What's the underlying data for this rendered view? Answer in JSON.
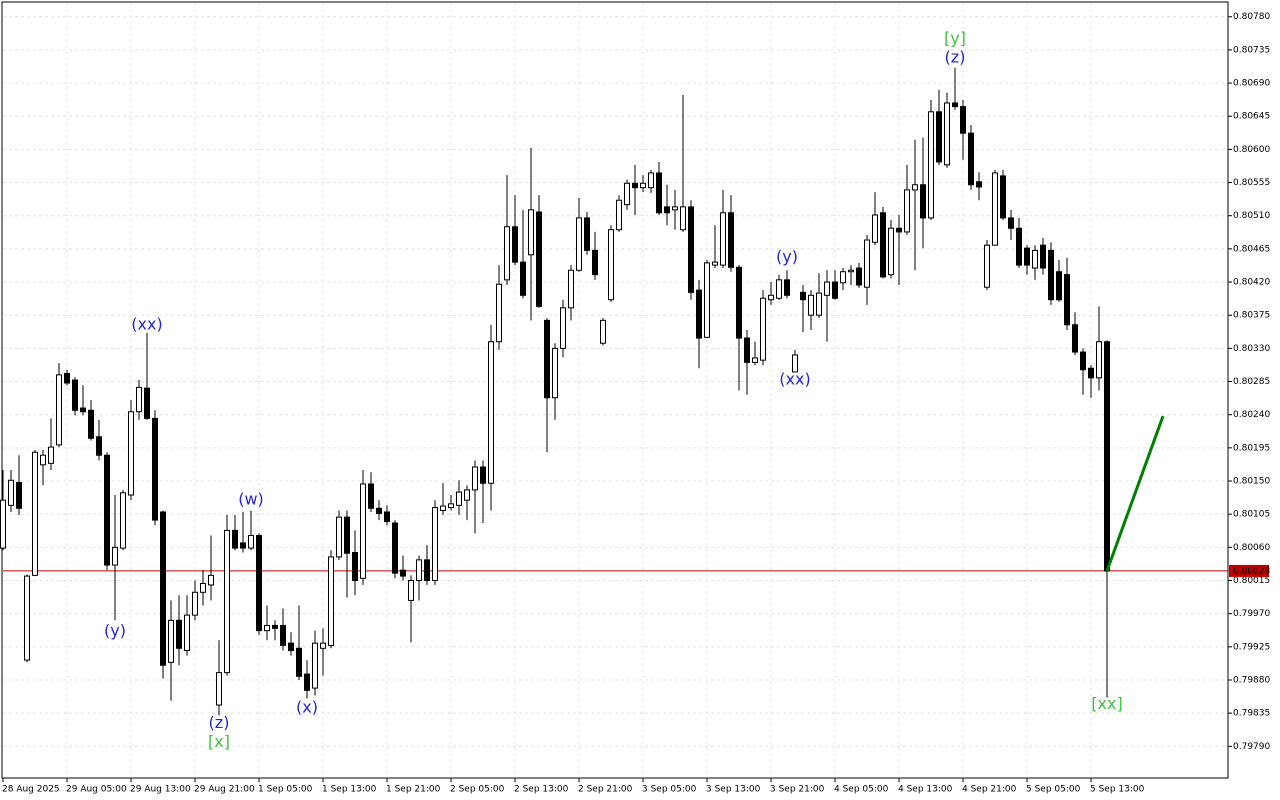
{
  "chart_data": {
    "type": "candlestick",
    "categories": [
      "28 Aug 2025",
      null,
      null,
      null,
      null,
      null,
      null,
      null,
      "29 Aug 05:00",
      null,
      null,
      null,
      null,
      null,
      null,
      null,
      "29 Aug 13:00",
      null,
      null,
      null,
      null,
      null,
      null,
      null,
      "29 Aug 21:00",
      null,
      null,
      null,
      null,
      null,
      null,
      null,
      "1 Sep 05:00",
      null,
      null,
      null,
      null,
      null,
      null,
      null,
      "1 Sep 13:00",
      null,
      null,
      null,
      null,
      null,
      null,
      null,
      "1 Sep 21:00",
      null,
      null,
      null,
      null,
      null,
      null,
      null,
      "2 Sep 05:00",
      null,
      null,
      null,
      null,
      null,
      null,
      null,
      "2 Sep 13:00",
      null,
      null,
      null,
      null,
      null,
      null,
      null,
      "2 Sep 21:00",
      null,
      null,
      null,
      null,
      null,
      null,
      null,
      "3 Sep 05:00",
      null,
      null,
      null,
      null,
      null,
      null,
      null,
      "3 Sep 13:00",
      null,
      null,
      null,
      null,
      null,
      null,
      null,
      "3 Sep 21:00",
      null,
      null,
      null,
      null,
      null,
      null,
      null,
      "4 Sep 05:00",
      null,
      null,
      null,
      null,
      null,
      null,
      null,
      "4 Sep 13:00",
      null,
      null,
      null,
      null,
      null,
      null,
      null,
      "4 Sep 21:00",
      null,
      null,
      null,
      null,
      null,
      null,
      null,
      "5 Sep 05:00",
      null,
      null,
      null,
      null,
      null,
      null,
      null,
      "5 Sep 13:00",
      null,
      null
    ],
    "open": [
      0.80059,
      0.80117,
      0.80148,
      0.79907,
      0.80022,
      0.80172,
      0.80174,
      0.80199,
      0.80296,
      0.80287,
      0.80249,
      0.80246,
      0.8021,
      0.80185,
      0.80036,
      0.80059,
      0.80131,
      0.80244,
      0.80276,
      0.80235,
      0.80108,
      0.79904,
      0.79961,
      0.7992,
      0.79968,
      0.79999,
      0.80009,
      0.79846,
      0.7989,
      0.80083,
      0.80066,
      0.80059,
      0.80076,
      0.79947,
      0.79954,
      0.79954,
      0.7993,
      0.79923,
      0.79888,
      0.79869,
      0.79923,
      0.79927,
      0.80047,
      0.80101,
      0.80053,
      0.80018,
      0.80146,
      0.80113,
      0.80108,
      0.80093,
      0.80029,
      0.79988,
      0.80015,
      0.80043,
      0.80015,
      0.8011,
      0.80114,
      0.80117,
      0.80124,
      0.80138,
      0.80169,
      0.80147,
      0.80339,
      0.80423,
      0.80495,
      0.80447,
      0.80457,
      0.80515,
      0.80368,
      0.80263,
      0.8033,
      0.80385,
      0.80436,
      0.80507,
      0.80463,
      0.80337,
      0.80396,
      0.80491,
      0.80525,
      0.80554,
      0.80548,
      0.80548,
      0.80568,
      0.80522,
      0.80518,
      0.80491,
      0.80522,
      0.80409,
      0.80345,
      0.80443,
      0.80443,
      0.80514,
      0.8044,
      0.80344,
      0.80311,
      0.80314,
      0.80396,
      0.80398,
      0.80423,
      0.80298,
      0.80406,
      0.80375,
      0.80375,
      0.80402,
      0.8042,
      0.80419,
      0.80434,
      0.80439,
      0.80413,
      0.80474,
      0.80514,
      0.8043,
      0.80493,
      0.80488,
      0.80545,
      0.80552,
      0.80507,
      0.80651,
      0.80579,
      0.80663,
      0.80658,
      0.80622,
      0.80556,
      0.80413,
      0.8047,
      0.80564,
      0.80507,
      0.80493,
      0.80466,
      0.80439,
      0.8047,
      0.80463,
      0.80434,
      0.8043,
      0.80362,
      0.80325,
      0.80303,
      0.8029,
      0.80339
    ],
    "high": [
      0.80165,
      0.80165,
      0.80185,
      0.80023,
      0.80192,
      0.80192,
      0.80235,
      0.8031,
      0.80301,
      0.80291,
      0.8028,
      0.8026,
      0.80233,
      0.80189,
      0.80131,
      0.80138,
      0.8026,
      0.80287,
      0.80351,
      0.80246,
      0.8011,
      0.79988,
      0.79995,
      0.79995,
      0.80015,
      0.80029,
      0.80076,
      0.79934,
      0.80104,
      0.80104,
      0.80108,
      0.8011,
      0.80079,
      0.79981,
      0.79961,
      0.79977,
      0.79945,
      0.79981,
      0.79907,
      0.79947,
      0.7995,
      0.80056,
      0.8011,
      0.8011,
      0.80083,
      0.80165,
      0.80162,
      0.80124,
      0.80117,
      0.80097,
      0.80049,
      0.80022,
      0.80049,
      0.80063,
      0.80124,
      0.80147,
      0.80131,
      0.80151,
      0.80144,
      0.80178,
      0.80178,
      0.80362,
      0.80443,
      0.80565,
      0.80538,
      0.80518,
      0.80602,
      0.80538,
      0.80371,
      0.80337,
      0.80396,
      0.80443,
      0.80534,
      0.80515,
      0.80488,
      0.80371,
      0.80497,
      0.80538,
      0.80559,
      0.80579,
      0.80565,
      0.80572,
      0.80583,
      0.80552,
      0.80545,
      0.80674,
      0.80531,
      0.80423,
      0.8045,
      0.80497,
      0.80545,
      0.80538,
      0.80443,
      0.80355,
      0.80339,
      0.80409,
      0.8042,
      0.8043,
      0.80436,
      0.80328,
      0.80416,
      0.80409,
      0.80432,
      0.80436,
      0.80436,
      0.80439,
      0.80443,
      0.80446,
      0.80484,
      0.80542,
      0.80522,
      0.80504,
      0.80511,
      0.80579,
      0.80613,
      0.80616,
      0.80667,
      0.80681,
      0.80677,
      0.80711,
      0.80667,
      0.80633,
      0.80569,
      0.80477,
      0.80572,
      0.80572,
      0.80518,
      0.80507,
      0.8047,
      0.8047,
      0.8048,
      0.80474,
      0.8045,
      0.80453,
      0.80379,
      0.8033,
      0.80307,
      0.80387,
      0.80341
    ],
    "low": [
      0.80056,
      0.80108,
      0.80104,
      0.79904,
      0.80021,
      0.80144,
      0.80165,
      0.80196,
      0.8028,
      0.80239,
      0.80239,
      0.80205,
      0.80178,
      0.80029,
      0.79961,
      0.80056,
      0.80124,
      0.80233,
      0.80233,
      0.8009,
      0.79882,
      0.79852,
      0.799,
      0.79913,
      0.79961,
      0.79981,
      0.79988,
      0.79832,
      0.79886,
      0.80056,
      0.80053,
      0.80056,
      0.79941,
      0.79934,
      0.79934,
      0.7992,
      0.79913,
      0.7988,
      0.79855,
      0.79859,
      0.79886,
      0.79923,
      0.80043,
      0.79992,
      0.79995,
      0.80009,
      0.80108,
      0.80097,
      0.8009,
      0.80018,
      0.80015,
      0.79931,
      0.79988,
      0.80009,
      0.80009,
      0.80104,
      0.8011,
      0.80104,
      0.80097,
      0.80079,
      0.80093,
      0.8011,
      0.80328,
      0.80416,
      0.80443,
      0.80398,
      0.80368,
      0.80385,
      0.80189,
      0.80233,
      0.80318,
      0.80368,
      0.80434,
      0.80457,
      0.80423,
      0.80334,
      0.80393,
      0.80488,
      0.80518,
      0.80511,
      0.80542,
      0.80541,
      0.80511,
      0.80497,
      0.80491,
      0.80488,
      0.80396,
      0.80303,
      0.80344,
      0.80439,
      0.80439,
      0.80434,
      0.80273,
      0.80267,
      0.80307,
      0.80307,
      0.80389,
      0.80396,
      0.80398,
      0.80298,
      0.80352,
      0.80355,
      0.80371,
      0.80339,
      0.80396,
      0.80409,
      0.80416,
      0.80412,
      0.80389,
      0.8047,
      0.80425,
      0.80425,
      0.80416,
      0.80484,
      0.80436,
      0.80466,
      0.80504,
      0.80579,
      0.80575,
      0.80654,
      0.80586,
      0.80545,
      0.80531,
      0.80409,
      0.8047,
      0.80504,
      0.80477,
      0.80439,
      0.8043,
      0.80423,
      0.8043,
      0.80389,
      0.80393,
      0.80355,
      0.80321,
      0.80267,
      0.80263,
      0.80273,
      0.79856
    ],
    "close": [
      0.80124,
      0.80151,
      0.80113,
      0.80021,
      0.80189,
      0.80185,
      0.80196,
      0.80294,
      0.80283,
      0.80246,
      0.80244,
      0.80208,
      0.80185,
      0.80036,
      0.8006,
      0.80134,
      0.80244,
      0.80277,
      0.80235,
      0.80097,
      0.799,
      0.79961,
      0.79923,
      0.79968,
      0.79999,
      0.80011,
      0.80022,
      0.7989,
      0.80083,
      0.80059,
      0.80059,
      0.80076,
      0.79947,
      0.79954,
      0.7995,
      0.79927,
      0.7992,
      0.79885,
      0.79866,
      0.7993,
      0.7993,
      0.80047,
      0.80101,
      0.80052,
      0.80015,
      0.80146,
      0.80113,
      0.80106,
      0.80095,
      0.80025,
      0.80021,
      0.80015,
      0.80043,
      0.80015,
      0.80114,
      0.80116,
      0.80119,
      0.80135,
      0.80138,
      0.80169,
      0.80147,
      0.80339,
      0.80417,
      0.80495,
      0.80447,
      0.80402,
      0.80518,
      0.80387,
      0.80263,
      0.8033,
      0.80385,
      0.80436,
      0.80507,
      0.80463,
      0.8043,
      0.80368,
      0.80491,
      0.80531,
      0.80554,
      0.80548,
      0.80554,
      0.80568,
      0.80514,
      0.80514,
      0.80522,
      0.80522,
      0.80406,
      0.80344,
      0.80446,
      0.80447,
      0.80514,
      0.8044,
      0.80344,
      0.80311,
      0.80317,
      0.80398,
      0.80402,
      0.80423,
      0.80402,
      0.80321,
      0.80396,
      0.80402,
      0.80405,
      0.8042,
      0.80398,
      0.80434,
      0.80436,
      0.80416,
      0.80477,
      0.80511,
      0.80427,
      0.80493,
      0.80488,
      0.80545,
      0.80552,
      0.80507,
      0.80651,
      0.80583,
      0.80663,
      0.80658,
      0.80622,
      0.80552,
      0.80549,
      0.8047,
      0.80568,
      0.80507,
      0.80493,
      0.80443,
      0.80443,
      0.80463,
      0.80439,
      0.80396,
      0.80396,
      0.80362,
      0.80325,
      0.80301,
      0.8029,
      0.80339,
      0.80028
    ],
    "up_color": "#ffffff",
    "down_color": "#000000",
    "ylim": [
      0.79747,
      0.808
    ],
    "yticks": [
      {
        "value": 0.7979,
        "label": "0.79790"
      },
      0.79835,
      {
        "value": 0.7988,
        "label": "0.79880"
      },
      0.79925,
      {
        "value": 0.7997,
        "label": "0.79970"
      },
      0.80015,
      {
        "value": 0.8006,
        "label": "0.80060"
      },
      0.80105,
      {
        "value": 0.8015,
        "label": "0.80150"
      },
      0.80195,
      {
        "value": 0.8024,
        "label": "0.80240"
      },
      0.80285,
      {
        "value": 0.8033,
        "label": "0.80330"
      },
      0.80375,
      {
        "value": 0.8042,
        "label": "0.80420"
      },
      0.80465,
      {
        "value": 0.8051,
        "label": "0.80510"
      },
      0.80555,
      {
        "value": 0.806,
        "label": "0.80600"
      },
      0.80645,
      {
        "value": 0.8069,
        "label": "0.80690"
      },
      0.80735,
      {
        "value": 0.8078,
        "label": "0.80780"
      }
    ],
    "grid": true,
    "current_price": 0.80028,
    "current_price_color": "#c00000",
    "projection": {
      "color": "#008000",
      "x": [
        138,
        145
      ],
      "values": [
        0.80028,
        0.80238
      ]
    },
    "annotations": [
      {
        "text": "(xx)",
        "index": 18,
        "value": 0.80362,
        "color": "#2424d8"
      },
      {
        "text": "(y)",
        "index": 14,
        "value": 0.79946,
        "color": "#2424d8"
      },
      {
        "text": "(z)",
        "index": 27,
        "value": 0.79821,
        "color": "#2424d8"
      },
      {
        "text": "[x]",
        "index": 27,
        "value": 0.79795,
        "color": "#3ec43e"
      },
      {
        "text": "(w)",
        "index": 31,
        "value": 0.80124,
        "color": "#2424d8"
      },
      {
        "text": "(x)",
        "index": 38,
        "value": 0.79842,
        "color": "#2424d8"
      },
      {
        "text": "(y)",
        "index": 98,
        "value": 0.80453,
        "color": "#2424d8"
      },
      {
        "text": "(xx)",
        "index": 99,
        "value": 0.80287,
        "color": "#2424d8"
      },
      {
        "text": "[y]",
        "index": 119,
        "value": 0.8075,
        "color": "#3ec43e"
      },
      {
        "text": "(z)",
        "index": 119,
        "value": 0.80724,
        "color": "#2424d8"
      },
      {
        "text": "[xx]",
        "index": 138,
        "value": 0.79847,
        "color": "#3ec43e"
      }
    ]
  }
}
